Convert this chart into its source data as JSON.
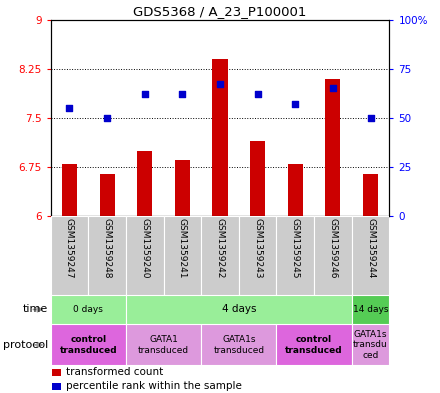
{
  "title": "GDS5368 / A_23_P100001",
  "samples": [
    "GSM1359247",
    "GSM1359248",
    "GSM1359240",
    "GSM1359241",
    "GSM1359242",
    "GSM1359243",
    "GSM1359245",
    "GSM1359246",
    "GSM1359244"
  ],
  "transformed_count": [
    6.8,
    6.65,
    7.0,
    6.85,
    8.4,
    7.15,
    6.8,
    8.1,
    6.65
  ],
  "percentile_rank": [
    55,
    50,
    62,
    62,
    67,
    62,
    57,
    65,
    50
  ],
  "ylim_left": [
    6,
    9
  ],
  "ylim_right": [
    0,
    100
  ],
  "yticks_left": [
    6,
    6.75,
    7.5,
    8.25,
    9
  ],
  "yticks_right": [
    0,
    25,
    50,
    75,
    100
  ],
  "ytick_labels_left": [
    "6",
    "6.75",
    "7.5",
    "8.25",
    "9"
  ],
  "ytick_labels_right": [
    "0",
    "25",
    "50",
    "75",
    "100%"
  ],
  "bar_color": "#cc0000",
  "dot_color": "#0000cc",
  "bar_bottom": 6,
  "bar_width": 0.4,
  "dot_size": 25,
  "time_groups": [
    {
      "label": "0 days",
      "start": 0,
      "end": 2,
      "color": "#99ee99"
    },
    {
      "label": "4 days",
      "start": 2,
      "end": 8,
      "color": "#99ee99"
    },
    {
      "label": "14 days",
      "start": 8,
      "end": 9,
      "color": "#55cc55"
    }
  ],
  "protocol_groups": [
    {
      "label": "control\ntransduced",
      "start": 0,
      "end": 2,
      "color": "#dd66dd",
      "bold": true
    },
    {
      "label": "GATA1\ntransduced",
      "start": 2,
      "end": 4,
      "color": "#dd99dd",
      "bold": false
    },
    {
      "label": "GATA1s\ntransduced",
      "start": 4,
      "end": 6,
      "color": "#dd99dd",
      "bold": false
    },
    {
      "label": "control\ntransduced",
      "start": 6,
      "end": 8,
      "color": "#dd66dd",
      "bold": true
    },
    {
      "label": "GATA1s\ntransdu\nced",
      "start": 8,
      "end": 9,
      "color": "#dd99dd",
      "bold": false
    }
  ],
  "legend_items": [
    {
      "color": "#cc0000",
      "label": "transformed count"
    },
    {
      "color": "#0000cc",
      "label": "percentile rank within the sample"
    }
  ],
  "grid_yticks": [
    6.75,
    7.5,
    8.25
  ],
  "left_color": "red",
  "right_color": "blue"
}
